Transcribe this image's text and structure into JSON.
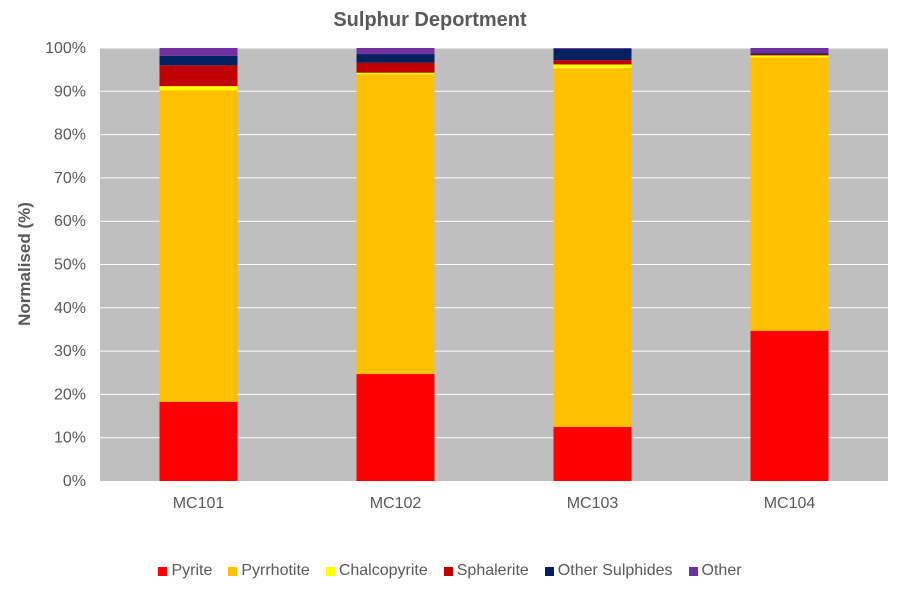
{
  "chart_data": {
    "type": "bar",
    "stacked": true,
    "title": "Sulphur Deportment",
    "ylabel": "Normalised (%)",
    "xlabel": "",
    "ylim": [
      0,
      100
    ],
    "yticks": [
      "0%",
      "10%",
      "20%",
      "30%",
      "40%",
      "50%",
      "60%",
      "70%",
      "80%",
      "90%",
      "100%"
    ],
    "grid": true,
    "legend_position": "bottom",
    "categories": [
      "MC101",
      "MC102",
      "MC103",
      "MC104"
    ],
    "series": [
      {
        "name": "Pyrite",
        "color": "#ff0000",
        "values": [
          18.3,
          24.7,
          12.5,
          34.7
        ]
      },
      {
        "name": "Pyrrhotite",
        "color": "#ffc000",
        "values": [
          71.9,
          69.2,
          82.8,
          63.1
        ]
      },
      {
        "name": "Chalcopyrite",
        "color": "#ffff00",
        "values": [
          1.0,
          0.4,
          0.9,
          0.5
        ]
      },
      {
        "name": "Sphalerite",
        "color": "#c00000",
        "values": [
          4.8,
          2.3,
          1.0,
          0.2
        ]
      },
      {
        "name": "Other Sulphides",
        "color": "#002060",
        "values": [
          2.2,
          2.0,
          2.6,
          0.3
        ]
      },
      {
        "name": "Other",
        "color": "#7030a0",
        "values": [
          1.8,
          1.4,
          0.2,
          1.2
        ]
      }
    ]
  }
}
